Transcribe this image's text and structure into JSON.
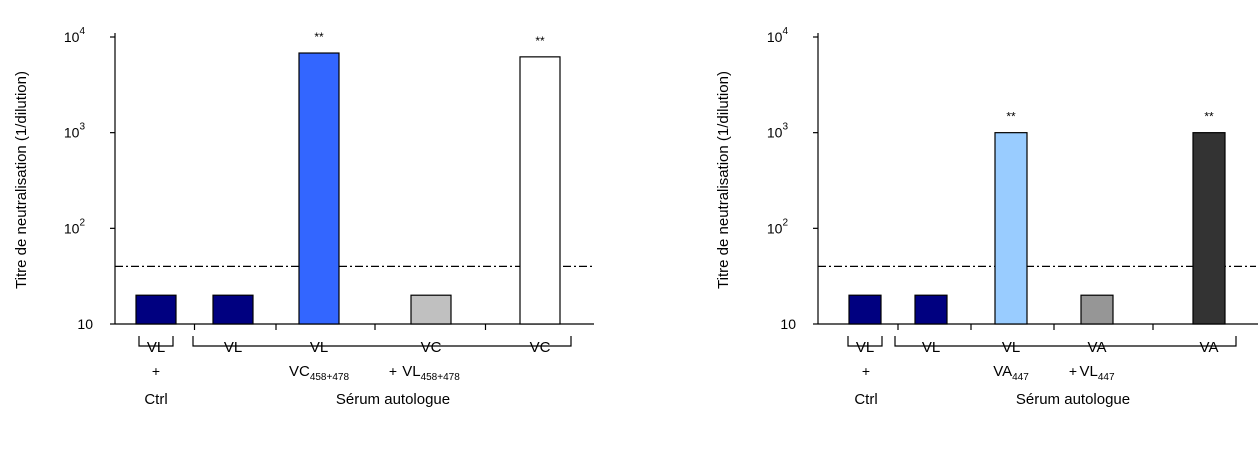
{
  "ylabel": "Titre de neutralisation (1/dilution)",
  "y_ticks": [
    {
      "value": 10,
      "base": "10",
      "exp": ""
    },
    {
      "value": 100,
      "base": "10",
      "exp": "2"
    },
    {
      "value": 1000,
      "base": "10",
      "exp": "3"
    },
    {
      "value": 10000,
      "base": "10",
      "exp": "4"
    }
  ],
  "chart_data": [
    {
      "type": "bar",
      "yscale": "log",
      "ylim": [
        10,
        10000
      ],
      "ylabel": "Titre de neutralisation (1/dilution)",
      "threshold": 40,
      "threshold_style": "dash-dot",
      "categories": [
        {
          "line1": "VL",
          "line2": "",
          "line2_sub": ""
        },
        {
          "line1": "VL",
          "line2": "",
          "line2_sub": ""
        },
        {
          "line1": "VL",
          "line2": "VC",
          "line2_sub": "458+478"
        },
        {
          "line1": "VC",
          "line2": "VL",
          "line2_sub": "458+478"
        },
        {
          "line1": "VC",
          "line2": "",
          "line2_sub": ""
        }
      ],
      "values": [
        20,
        20,
        6800,
        20,
        6200
      ],
      "colors": [
        "#000080",
        "#000080",
        "#3366ff",
        "#c0c0c0",
        "#ffffff"
      ],
      "annotations": [
        "",
        "",
        "**",
        "",
        "**"
      ],
      "groups": [
        {
          "label_top": "+",
          "label_bottom": "Ctrl",
          "from": 0,
          "to": 0
        },
        {
          "label_top": "+",
          "label_bottom": "Sérum autologue",
          "from": 1,
          "to": 4
        }
      ]
    },
    {
      "type": "bar",
      "yscale": "log",
      "ylim": [
        10,
        10000
      ],
      "ylabel": "Titre de neutralisation (1/dilution)",
      "threshold": 40,
      "threshold_style": "dash-dot",
      "categories": [
        {
          "line1": "VL",
          "line2": "",
          "line2_sub": ""
        },
        {
          "line1": "VL",
          "line2": "",
          "line2_sub": ""
        },
        {
          "line1": "VL",
          "line2": "VA",
          "line2_sub": "447"
        },
        {
          "line1": "VA",
          "line2": "VL",
          "line2_sub": "447"
        },
        {
          "line1": "VA",
          "line2": "",
          "line2_sub": ""
        }
      ],
      "values": [
        20,
        20,
        1000,
        20,
        1000
      ],
      "colors": [
        "#000080",
        "#000080",
        "#99ccff",
        "#969696",
        "#333333"
      ],
      "annotations": [
        "",
        "",
        "**",
        "",
        "**"
      ],
      "groups": [
        {
          "label_top": "+",
          "label_bottom": "Ctrl",
          "from": 0,
          "to": 0
        },
        {
          "label_top": "+",
          "label_bottom": "Sérum autologue",
          "from": 1,
          "to": 4
        }
      ]
    }
  ]
}
